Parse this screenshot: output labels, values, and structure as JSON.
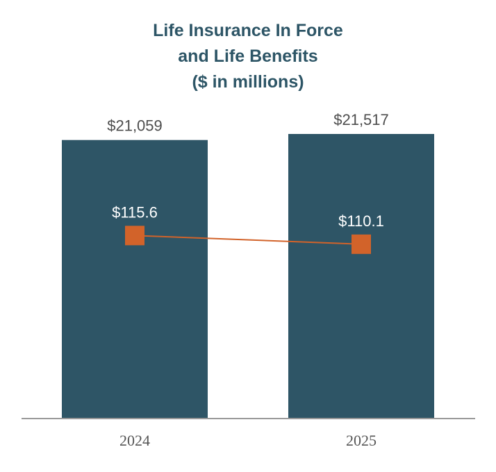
{
  "chart_data": {
    "type": "bar",
    "title": [
      "Life Insurance In Force",
      "and Life Benefits",
      "($ in millions)"
    ],
    "categories": [
      "2024",
      "2025"
    ],
    "series": [
      {
        "name": "Life Insurance In Force",
        "type": "bar",
        "values": [
          21059,
          21517
        ],
        "labels": [
          "$21,059",
          "$21,517"
        ],
        "color": "#2e5566"
      },
      {
        "name": "Life Benefits",
        "type": "line",
        "values": [
          115.6,
          110.1
        ],
        "labels": [
          "$115.6",
          "$110.1"
        ],
        "color": "#d2632a"
      }
    ],
    "ylim_bar": [
      0,
      21517
    ],
    "ylim_line": [
      0,
      180
    ],
    "grid": false,
    "xlabel": "",
    "ylabel": ""
  }
}
